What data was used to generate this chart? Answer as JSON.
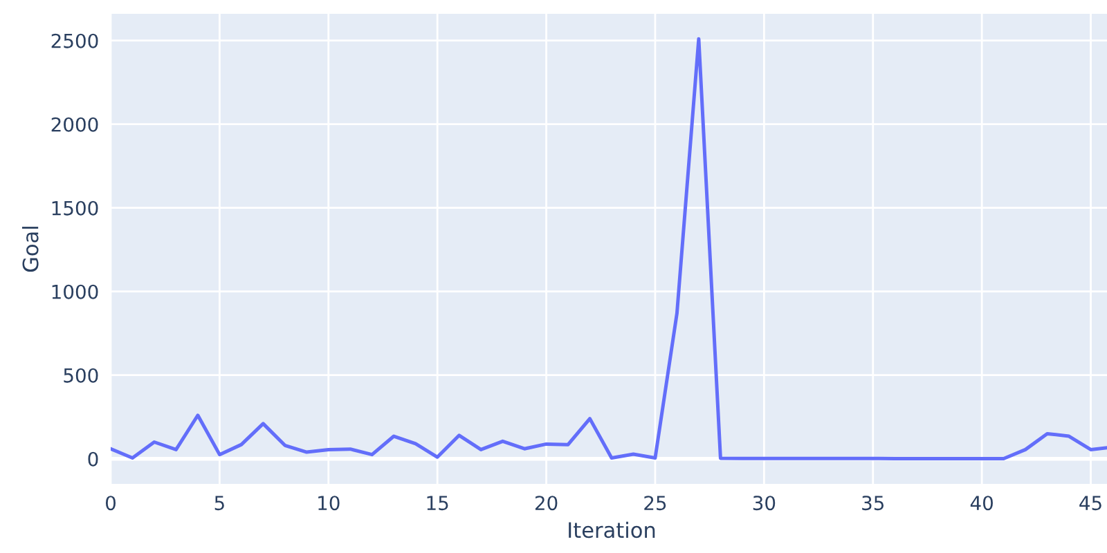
{
  "chart_data": {
    "type": "line",
    "xlabel": "Iteration",
    "ylabel": "Goal",
    "x": [
      0,
      1,
      2,
      3,
      4,
      5,
      6,
      7,
      8,
      9,
      10,
      11,
      12,
      13,
      14,
      15,
      16,
      17,
      18,
      19,
      20,
      21,
      22,
      23,
      24,
      25,
      26,
      27,
      28,
      29,
      30,
      31,
      32,
      33,
      34,
      35,
      36,
      37,
      38,
      39,
      40,
      41,
      42,
      43,
      44,
      45,
      46
    ],
    "series": [
      {
        "color": "#636efa",
        "values": [
          60,
          5,
          100,
          55,
          260,
          25,
          85,
          210,
          80,
          40,
          55,
          58,
          25,
          135,
          90,
          10,
          140,
          55,
          105,
          60,
          88,
          85,
          240,
          5,
          28,
          5,
          870,
          2510,
          3,
          2,
          2,
          2,
          2,
          2,
          2,
          2,
          1,
          1,
          1,
          1,
          1,
          1,
          55,
          150,
          135,
          55,
          70
        ]
      }
    ],
    "xlim": [
      0,
      46
    ],
    "xticks": [
      0,
      5,
      10,
      15,
      20,
      25,
      30,
      35,
      40,
      45
    ],
    "ylim": [
      -150,
      2660
    ],
    "yticks": [
      0,
      500,
      1000,
      1500,
      2000,
      2500
    ],
    "grid": true,
    "marker": "none",
    "line_style": "solid",
    "legend": false
  }
}
